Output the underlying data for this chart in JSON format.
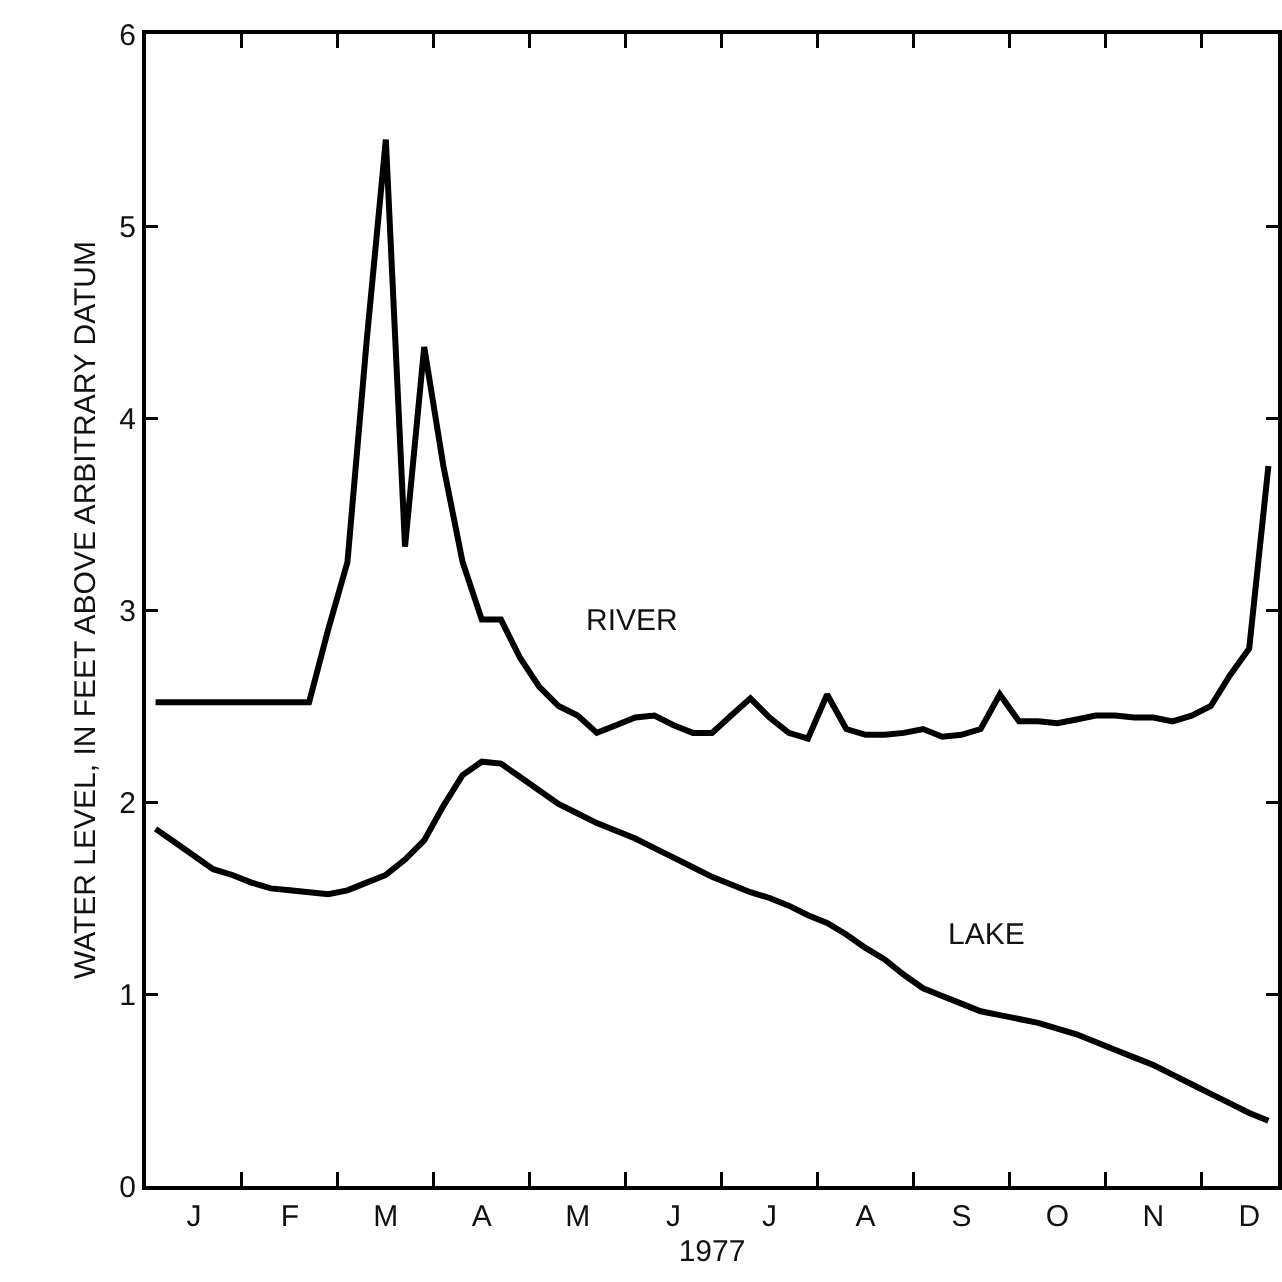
{
  "chart_data": {
    "type": "line",
    "xlabel": "1977",
    "ylabel": "WATER LEVEL, IN FEET ABOVE ARBITRARY DATUM",
    "categories": [
      null,
      null,
      "J",
      null,
      null,
      null,
      null,
      "F",
      null,
      null,
      null,
      null,
      "M",
      null,
      null,
      null,
      null,
      "A",
      null,
      null,
      null,
      null,
      "M",
      null,
      null,
      null,
      null,
      "J",
      null,
      null,
      null,
      null,
      "J",
      null,
      null,
      null,
      null,
      "A",
      null,
      null,
      null,
      null,
      "S",
      null,
      null,
      null,
      null,
      "O",
      null,
      null,
      null,
      null,
      "N",
      null,
      null,
      null,
      null,
      "D",
      null
    ],
    "ylim": [
      0,
      6
    ],
    "yticks": [
      0,
      1,
      2,
      3,
      4,
      5,
      6
    ],
    "grid": false,
    "marker": "none",
    "line_style": "solid",
    "annotations": [
      "RIVER",
      "LAKE"
    ],
    "series": [
      {
        "color": "#000000",
        "values": [
          2.52,
          2.52,
          2.52,
          2.52,
          2.52,
          2.52,
          2.52,
          2.52,
          2.52,
          2.9,
          3.25,
          4.4,
          5.45,
          3.33,
          4.37,
          3.75,
          3.25,
          2.95,
          2.95,
          2.75,
          2.6,
          2.5,
          2.45,
          2.36,
          2.4,
          2.44,
          2.45,
          2.4,
          2.36,
          2.36,
          2.45,
          2.54,
          2.44,
          2.36,
          2.33,
          2.56,
          2.38,
          2.35,
          2.35,
          2.36,
          2.38,
          2.34,
          2.35,
          2.38,
          2.56,
          2.42,
          2.42,
          2.41,
          2.43,
          2.45,
          2.45,
          2.44,
          2.44,
          2.42,
          2.45,
          2.5,
          2.66,
          2.8,
          3.75
        ]
      },
      {
        "color": "#000000",
        "values": [
          1.86,
          1.79,
          1.72,
          1.65,
          1.62,
          1.58,
          1.55,
          1.54,
          1.53,
          1.52,
          1.54,
          1.58,
          1.62,
          1.7,
          1.8,
          1.98,
          2.14,
          2.21,
          2.2,
          2.13,
          2.06,
          1.99,
          1.94,
          1.89,
          1.85,
          1.81,
          1.76,
          1.71,
          1.66,
          1.61,
          1.57,
          1.53,
          1.5,
          1.46,
          1.41,
          1.37,
          1.31,
          1.24,
          1.18,
          1.1,
          1.03,
          0.99,
          0.95,
          0.91,
          0.89,
          0.87,
          0.85,
          0.82,
          0.79,
          0.75,
          0.71,
          0.67,
          0.63,
          0.58,
          0.53,
          0.48,
          0.43,
          0.38,
          0.34
        ]
      }
    ]
  }
}
